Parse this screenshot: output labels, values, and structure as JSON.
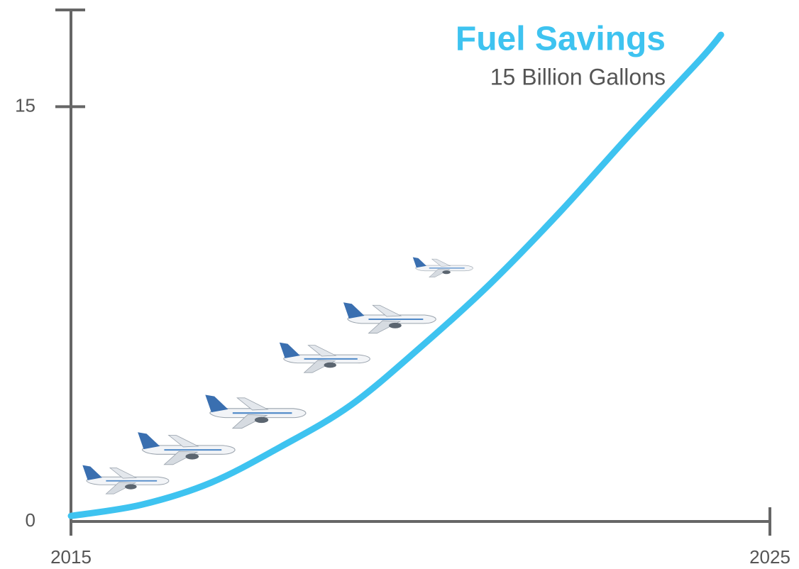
{
  "chart_data": {
    "type": "line",
    "title": "Fuel Savings",
    "subtitle": "15 Billion Gallons",
    "x": [
      2015,
      2016,
      2017,
      2018,
      2019,
      2020,
      2021,
      2022,
      2023,
      2024,
      2024.3
    ],
    "series": [
      {
        "color": "#3ec3f0",
        "values": [
          0.2,
          0.6,
          1.4,
          2.7,
          4.2,
          6.3,
          8.6,
          11.2,
          14.0,
          16.7,
          17.6
        ]
      }
    ],
    "xlim": [
      2015,
      2025
    ],
    "xticks": [
      2015,
      2025
    ],
    "ylim": [
      0,
      18.5
    ],
    "yticks": [
      0,
      15
    ],
    "axis_color": "#666666"
  }
}
